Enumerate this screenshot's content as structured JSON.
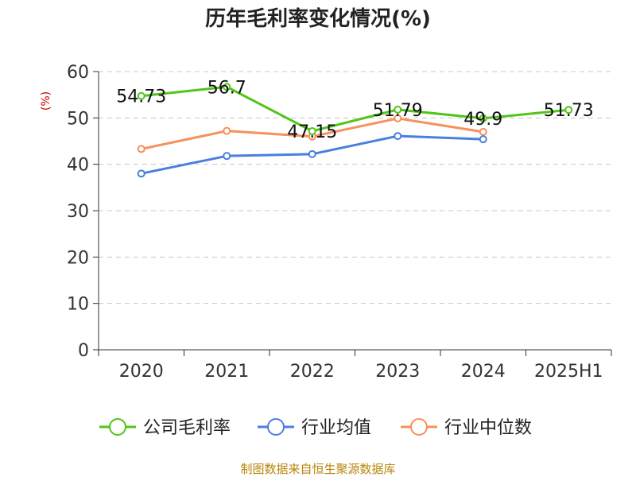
{
  "chart_data": {
    "type": "line",
    "title": "历年毛利率变化情况(%)",
    "unit_label": "(%)",
    "categories": [
      "2020",
      "2021",
      "2022",
      "2023",
      "2024",
      "2025H1"
    ],
    "ylim": [
      0,
      60
    ],
    "yticks": [
      "0",
      "10",
      "20",
      "30",
      "40",
      "50",
      "60"
    ],
    "grid": true,
    "legend_position": "bottom",
    "series": [
      {
        "name": "公司毛利率",
        "color": "#52c41a",
        "values": [
          54.73,
          56.7,
          47.15,
          51.79,
          49.9,
          51.73
        ],
        "labels": [
          "54.73",
          "56.7",
          "47.15",
          "51.79",
          "49.9",
          "51.73"
        ]
      },
      {
        "name": "行业均值",
        "color": "#4a7fde",
        "values": [
          38.0,
          41.8,
          42.2,
          46.1,
          45.4,
          null
        ]
      },
      {
        "name": "行业中位数",
        "color": "#f7905a",
        "values": [
          43.3,
          47.2,
          46.0,
          49.9,
          47.0,
          null
        ]
      }
    ],
    "source": "制图数据来自恒生聚源数据库"
  }
}
